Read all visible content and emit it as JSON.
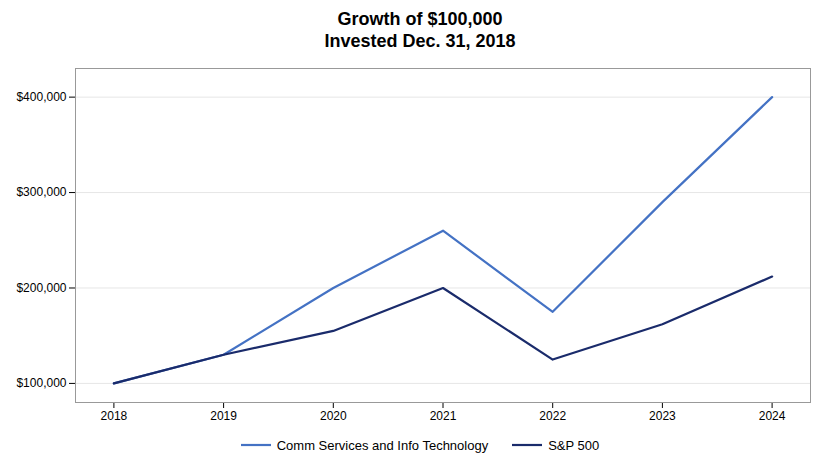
{
  "chart_data": {
    "type": "line",
    "title": "Growth of $100,000",
    "subtitle": "Invested Dec. 31, 2018",
    "x": [
      2018,
      2019,
      2020,
      2021,
      2022,
      2023,
      2024
    ],
    "series": [
      {
        "name": "Comm Services and Info Technology",
        "color": "#4472c4",
        "values": [
          100000,
          130000,
          200000,
          260000,
          175000,
          290000,
          400000
        ]
      },
      {
        "name": "S&P 500",
        "color": "#1a2b6b",
        "values": [
          100000,
          130000,
          155000,
          200000,
          125000,
          162000,
          212000
        ]
      }
    ],
    "xlim": [
      2017.65,
      2024.35
    ],
    "xticks": [
      2018,
      2019,
      2020,
      2021,
      2022,
      2023,
      2024
    ],
    "ylim": [
      80000,
      430000
    ],
    "yticks": [
      {
        "value": 100000,
        "label": "$100,000"
      },
      {
        "value": 200000,
        "label": "$200,000"
      },
      {
        "value": 300000,
        "label": "$300,000"
      },
      {
        "value": 400000,
        "label": "$400,000"
      }
    ],
    "grid": true,
    "legend": "bottom"
  }
}
